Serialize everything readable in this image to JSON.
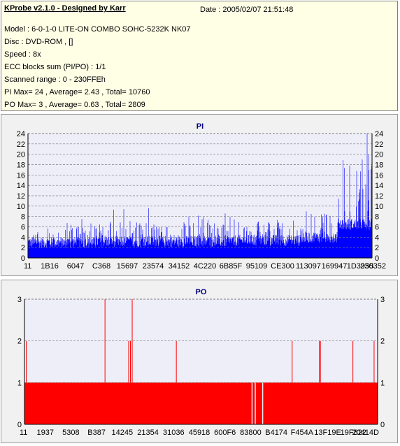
{
  "info": {
    "app_title": "KProbe v2.1.0 - Designed by Karr",
    "date": "Date : 2005/02/07 21:51:48",
    "lines": [
      "Model : 6-0-1-0 LITE-ON COMBO SOHC-5232K NK07",
      "Disc : DVD-ROM ,  []",
      "Speed : 8x",
      "ECC blocks sum (PI/PO) : 1/1",
      "Scanned range : 0 - 230FFEh",
      "PI Max= 24 , Average= 2.43 , Total= 10760",
      "PO Max= 3 , Average= 0.63 , Total= 2809"
    ]
  },
  "colors": {
    "pi_series": "#0000ff",
    "po_series": "#ff0000",
    "plot_bg": "#eeeef8",
    "title": "#000080"
  },
  "chart_data": [
    {
      "type": "bar",
      "title": "PI",
      "ylim": [
        0,
        24
      ],
      "yticks": [
        0,
        2,
        4,
        6,
        8,
        10,
        12,
        14,
        16,
        18,
        20,
        22,
        24
      ],
      "x_tick_labels": [
        "11",
        "1B16",
        "6047",
        "C368",
        "15697",
        "23574",
        "34152",
        "4C220",
        "6B85F",
        "95109",
        "CE300",
        "113097",
        "169947",
        "1D3955",
        "230352"
      ],
      "grid": true,
      "series": [
        {
          "baseline": 4,
          "segments": [
            {
              "x": [
                0.0,
                0.2
              ],
              "level": 3.0,
              "peaks": [
                8,
                6,
                7,
                6,
                5,
                7,
                6,
                8,
                7,
                6
              ]
            },
            {
              "x": [
                0.2,
                0.4
              ],
              "level": 3.2,
              "peaks": [
                6,
                9,
                7,
                6,
                8,
                7,
                10,
                6,
                7,
                8
              ]
            },
            {
              "x": [
                0.4,
                0.6
              ],
              "level": 3.2,
              "peaks": [
                7,
                9,
                6,
                8,
                9,
                7,
                8,
                6,
                7,
                6
              ]
            },
            {
              "x": [
                0.6,
                0.8
              ],
              "level": 3.4,
              "peaks": [
                6,
                8,
                7,
                9,
                7,
                6,
                8,
                7,
                6,
                7
              ]
            },
            {
              "x": [
                0.8,
                0.9
              ],
              "level": 4.0,
              "peaks": [
                9,
                8,
                10,
                9,
                8,
                9,
                10,
                9
              ]
            },
            {
              "x": [
                0.9,
                1.0
              ],
              "level": 6.5,
              "peaks": [
                10,
                12,
                14,
                13,
                16,
                18,
                16,
                20,
                19,
                24,
                18,
                17
              ]
            }
          ]
        }
      ]
    },
    {
      "type": "bar",
      "title": "PO",
      "ylim": [
        0,
        3
      ],
      "yticks": [
        0,
        1,
        2,
        3
      ],
      "x_tick_labels": [
        "11",
        "1937",
        "5308",
        "B387",
        "14245",
        "21354",
        "31036",
        "45918",
        "600F6",
        "83800",
        "B4174",
        "F454A",
        "13F19E",
        "19F822",
        "20414D"
      ],
      "grid": true,
      "series": [
        {
          "baseline": 1,
          "spikes": [
            {
              "x": 0.005,
              "value": 2
            },
            {
              "x": 0.228,
              "value": 3
            },
            {
              "x": 0.295,
              "value": 2
            },
            {
              "x": 0.3,
              "value": 2
            },
            {
              "x": 0.305,
              "value": 3
            },
            {
              "x": 0.43,
              "value": 2
            },
            {
              "x": 0.758,
              "value": 2
            },
            {
              "x": 0.835,
              "value": 2
            },
            {
              "x": 0.838,
              "value": 2
            },
            {
              "x": 0.93,
              "value": 2
            },
            {
              "x": 0.99,
              "value": 2
            }
          ],
          "gaps": [
            0.643,
            0.652,
            0.673
          ]
        }
      ]
    }
  ]
}
